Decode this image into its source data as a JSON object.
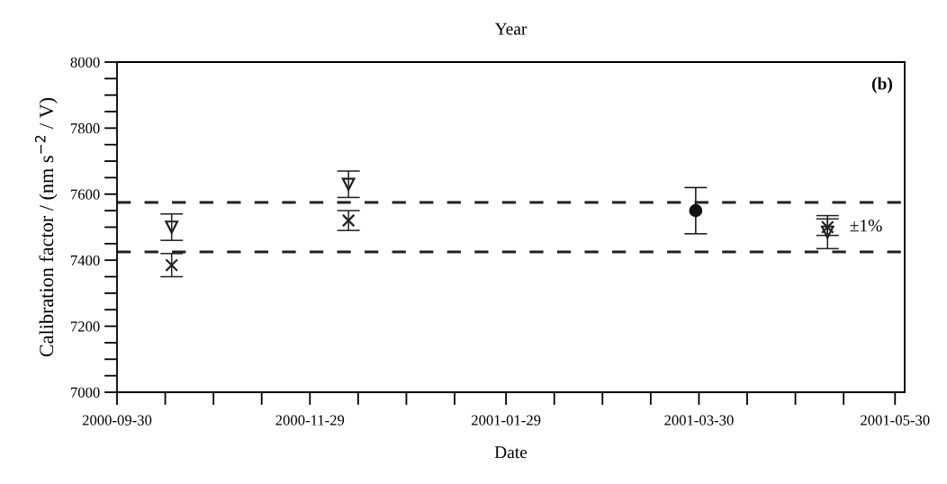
{
  "chart_data": {
    "type": "scatter",
    "title": "Year",
    "xlabel": "Date",
    "ylabel": "Calibration factor / (nm s$^{−2}$ / V)",
    "xlim": [
      "2000-09-30",
      "2001-06-02"
    ],
    "xticks": [
      {
        "value": "2000-09-30",
        "label": "2000-09-30"
      },
      {
        "value": "2000-10-15",
        "label": null
      },
      {
        "value": "2000-10-30",
        "label": null
      },
      {
        "value": "2000-11-14",
        "label": null
      },
      {
        "value": "2000-11-29",
        "label": "2000-11-29"
      },
      {
        "value": "2000-12-14",
        "label": null
      },
      {
        "value": "2000-12-29",
        "label": null
      },
      {
        "value": "2001-01-13",
        "label": null
      },
      {
        "value": "2001-01-29",
        "label": "2001-01-29"
      },
      {
        "value": "2001-02-13",
        "label": null
      },
      {
        "value": "2001-02-28",
        "label": null
      },
      {
        "value": "2001-03-15",
        "label": null
      },
      {
        "value": "2001-03-30",
        "label": "2001-03-30"
      },
      {
        "value": "2001-04-14",
        "label": null
      },
      {
        "value": "2001-04-29",
        "label": null
      },
      {
        "value": "2001-05-14",
        "label": null
      },
      {
        "value": "2001-05-30",
        "label": "2001-05-30"
      }
    ],
    "ylim": [
      7000,
      8000
    ],
    "yticks": [
      7000,
      {
        "value": 7050,
        "label": null
      },
      {
        "value": 7100,
        "label": null
      },
      {
        "value": 7150,
        "label": null
      },
      7200,
      {
        "value": 7250,
        "label": null
      },
      {
        "value": 7300,
        "label": null
      },
      {
        "value": 7350,
        "label": null
      },
      7400,
      {
        "value": 7450,
        "label": null
      },
      {
        "value": 7500,
        "label": null
      },
      {
        "value": 7550,
        "label": null
      },
      7600,
      {
        "value": 7650,
        "label": null
      },
      {
        "value": 7700,
        "label": null
      },
      {
        "value": 7750,
        "label": null
      },
      7800,
      {
        "value": 7850,
        "label": null
      },
      {
        "value": 7900,
        "label": null
      },
      {
        "value": 7950,
        "label": null
      },
      8000
    ],
    "grid": false,
    "legend": false,
    "series": [
      {
        "color": "#222222",
        "marker": "triangle",
        "x": [
          "2000-10-17",
          "2000-12-11",
          "2001-05-09"
        ],
        "values": [
          7500,
          7630,
          7485
        ],
        "errors": [
          40,
          40,
          50
        ]
      },
      {
        "color": "#222222",
        "marker": "cross",
        "x": [
          "2000-10-17",
          "2000-12-11",
          "2001-05-09"
        ],
        "values": [
          7385,
          7520,
          7500
        ],
        "errors": [
          35,
          30,
          25
        ]
      },
      {
        "color": "#111111",
        "marker": "circle",
        "x": [
          "2001-03-29"
        ],
        "values": [
          7550
        ],
        "errors": [
          70
        ]
      }
    ],
    "ref_lines": [
      {
        "axis": "y",
        "value": 7575,
        "label": null,
        "color": "#222222",
        "line_style": "dashed"
      },
      {
        "axis": "y",
        "value": 7425,
        "label": null,
        "color": "#222222",
        "line_style": "dashed"
      }
    ],
    "annotations": [
      "(b)",
      "±1%"
    ]
  }
}
